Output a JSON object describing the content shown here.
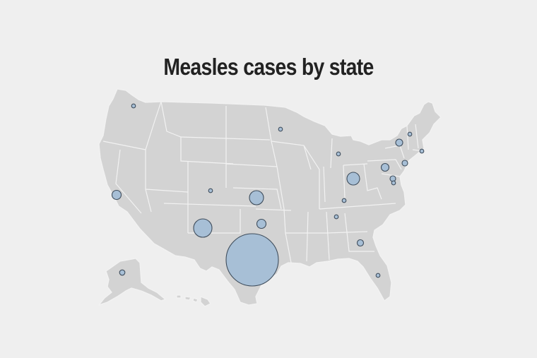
{
  "title": "Measles cases by state",
  "colors": {
    "background": "#efefef",
    "land": "#d3d3d3",
    "borders": "#f2f2f2",
    "bubble_fill": "#a7bfd6",
    "bubble_stroke": "#3f4d5c",
    "title": "#222222"
  },
  "map": {
    "type": "proportional-symbol",
    "region": "United States",
    "symbols": [
      {
        "state": "Texas",
        "relative_size": 100
      },
      {
        "state": "New Mexico",
        "relative_size": 12
      },
      {
        "state": "Kansas",
        "relative_size": 8
      },
      {
        "state": "Ohio",
        "relative_size": 6
      },
      {
        "state": "California",
        "relative_size": 3
      },
      {
        "state": "Oklahoma",
        "relative_size": 3
      },
      {
        "state": "Pennsylvania",
        "relative_size": 2
      },
      {
        "state": "New York",
        "relative_size": 2
      },
      {
        "state": "Georgia",
        "relative_size": 1.5
      },
      {
        "state": "Alaska",
        "relative_size": 1.3
      },
      {
        "state": "New Jersey",
        "relative_size": 1.3
      },
      {
        "state": "Maryland",
        "relative_size": 1.3
      },
      {
        "state": "Washington",
        "relative_size": 1
      },
      {
        "state": "Minnesota",
        "relative_size": 1
      },
      {
        "state": "Michigan",
        "relative_size": 1
      },
      {
        "state": "Colorado",
        "relative_size": 1
      },
      {
        "state": "Kentucky",
        "relative_size": 1
      },
      {
        "state": "Tennessee",
        "relative_size": 1
      },
      {
        "state": "Florida",
        "relative_size": 1
      },
      {
        "state": "Vermont",
        "relative_size": 1
      },
      {
        "state": "Rhode Island",
        "relative_size": 1
      },
      {
        "state": "Virginia",
        "relative_size": 1
      }
    ]
  }
}
